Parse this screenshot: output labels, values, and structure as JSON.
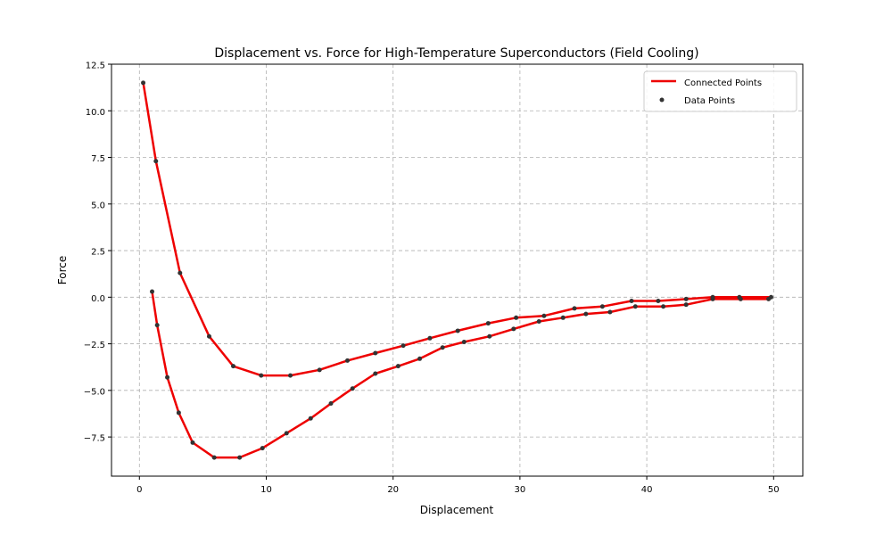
{
  "chart_data": {
    "type": "line",
    "title": "Displacement vs. Force for High-Temperature Superconductors (Field Cooling)",
    "xlabel": "Displacement",
    "ylabel": "Force",
    "xlim": [
      -2.2,
      52.3
    ],
    "ylim": [
      -9.6,
      12.5
    ],
    "xticks": [
      0,
      10,
      20,
      30,
      40,
      50
    ],
    "xtick_labels": [
      "0",
      "10",
      "20",
      "30",
      "40",
      "50"
    ],
    "yticks": [
      -7.5,
      -5.0,
      -2.5,
      0.0,
      2.5,
      5.0,
      7.5,
      10.0,
      12.5
    ],
    "ytick_labels": [
      "−7.5",
      "−5.0",
      "−2.5",
      "0.0",
      "2.5",
      "5.0",
      "7.5",
      "10.0",
      "12.5"
    ],
    "grid": true,
    "legend_position": "top-right",
    "legend": [
      "Connected Points",
      "Data Points"
    ],
    "line_color": "#ee0000",
    "point_color": "#333333",
    "series": [
      {
        "name": "Connected Points",
        "x": [
          0.3,
          1.3,
          3.2,
          5.5,
          7.4,
          9.6,
          11.9,
          14.2,
          16.4,
          18.6,
          20.8,
          22.9,
          25.1,
          27.5,
          29.7,
          31.9,
          34.3,
          36.5,
          38.8,
          40.9,
          43.1,
          45.2,
          47.3,
          49.8,
          49.6,
          47.4,
          45.2,
          43.1,
          41.3,
          39.1,
          37.1,
          35.2,
          33.4,
          31.5,
          29.5,
          27.6,
          25.6,
          23.9,
          22.1,
          20.4,
          18.6,
          16.8,
          15.1,
          13.5,
          11.6,
          9.7,
          7.9,
          5.9,
          4.2,
          3.1,
          2.2,
          1.4,
          1.0
        ],
        "y": [
          11.5,
          7.3,
          1.3,
          -2.1,
          -3.7,
          -4.2,
          -4.2,
          -3.9,
          -3.4,
          -3.0,
          -2.6,
          -2.2,
          -1.8,
          -1.4,
          -1.1,
          -1.0,
          -0.6,
          -0.5,
          -0.2,
          -0.2,
          -0.1,
          0.0,
          0.0,
          0.0,
          -0.1,
          -0.1,
          -0.1,
          -0.4,
          -0.5,
          -0.5,
          -0.8,
          -0.9,
          -1.1,
          -1.3,
          -1.7,
          -2.1,
          -2.4,
          -2.7,
          -3.3,
          -3.7,
          -4.1,
          -4.9,
          -5.7,
          -6.5,
          -7.3,
          -8.1,
          -8.6,
          -8.6,
          -7.8,
          -6.2,
          -4.3,
          -1.5,
          0.3
        ]
      }
    ]
  }
}
